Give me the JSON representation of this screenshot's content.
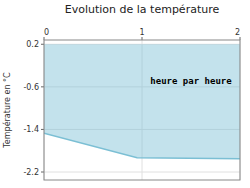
{
  "chart_data": {
    "type": "area",
    "title": "Evolution de la température",
    "y_label": "Température en °C",
    "x": [
      0,
      0.95,
      2
    ],
    "values": [
      -1.47,
      -1.93,
      -1.95
    ],
    "fill_to": 0.2,
    "color": "#7bbfd4",
    "xlim": [
      0,
      2
    ],
    "ylim": [
      -2.35,
      0.28
    ],
    "xticks": [
      0,
      1,
      2
    ],
    "yticks": [
      0.2,
      -0.6,
      -1.4,
      -2.2
    ],
    "grid": true,
    "annotations": [
      {
        "text": "heure par heure",
        "x": 1.5,
        "y": -0.5
      }
    ]
  }
}
